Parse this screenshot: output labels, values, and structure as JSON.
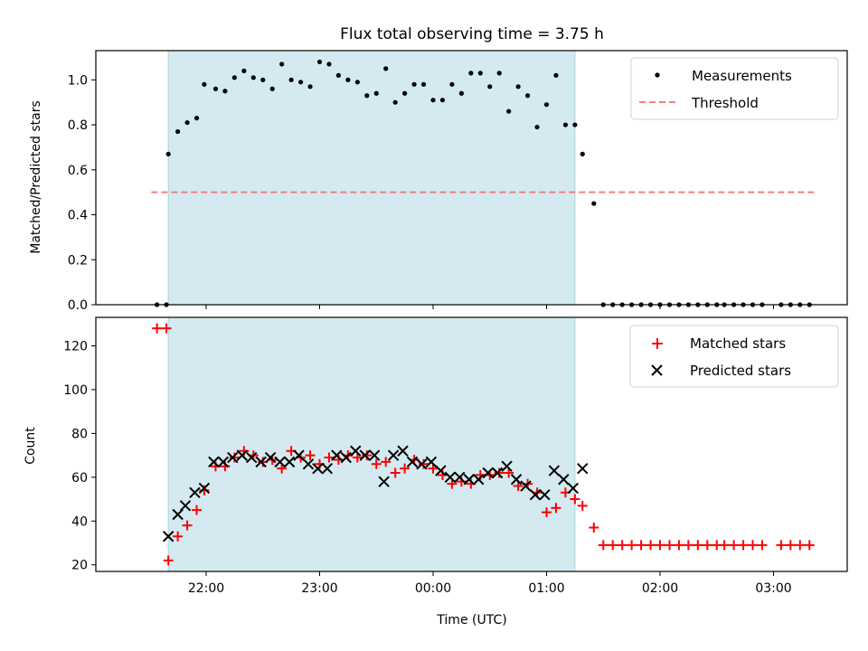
{
  "figure": {
    "title": "Flux total observing time = 3.75 h",
    "xlabel": "Time (UTC)",
    "x_tick_labels": [
      "22:00",
      "23:00",
      "00:00",
      "01:00",
      "02:00",
      "03:00"
    ],
    "shade_color": "#d4eaf0",
    "shade_edge": "#a8d3df"
  },
  "chart_data": [
    {
      "type": "scatter",
      "ylabel": "Matched/Predicted stars",
      "ylim": [
        0,
        1.13
      ],
      "yticks": [
        0.0,
        0.2,
        0.4,
        0.6,
        0.8,
        1.0
      ],
      "y_tick_labels": [
        "0.0",
        "0.2",
        "0.4",
        "0.6",
        "0.8",
        "1.0"
      ],
      "observing_window": {
        "start": "21:40",
        "end": "01:15"
      },
      "threshold": {
        "value": 0.5,
        "from": "21:31",
        "to": "03:22",
        "color": "#f08080"
      },
      "legend_position": "top-right",
      "legend": [
        {
          "label": "Measurements",
          "marker": "dot",
          "color": "#000000"
        },
        {
          "label": "Threshold",
          "marker": "dashed-line",
          "color": "#f08080"
        }
      ],
      "series": [
        {
          "name": "Measurements",
          "color": "#000000",
          "x": [
            "21:34",
            "21:39",
            "21:40",
            "21:45",
            "21:50",
            "21:55",
            "21:59",
            "22:05",
            "22:10",
            "22:15",
            "22:20",
            "22:25",
            "22:30",
            "22:35",
            "22:40",
            "22:45",
            "22:50",
            "22:55",
            "23:00",
            "23:05",
            "23:10",
            "23:15",
            "23:20",
            "23:25",
            "23:30",
            "23:35",
            "23:40",
            "23:45",
            "23:50",
            "23:55",
            "00:00",
            "00:05",
            "00:10",
            "00:15",
            "00:20",
            "00:25",
            "00:30",
            "00:35",
            "00:40",
            "00:45",
            "00:50",
            "00:55",
            "01:00",
            "01:05",
            "01:10",
            "01:15",
            "01:19",
            "01:25",
            "01:30",
            "01:35",
            "01:40",
            "01:45",
            "01:50",
            "01:55",
            "02:00",
            "02:05",
            "02:10",
            "02:15",
            "02:20",
            "02:25",
            "02:30",
            "02:34",
            "02:39",
            "02:44",
            "02:49",
            "02:54",
            "03:04",
            "03:09",
            "03:14",
            "03:19"
          ],
          "y": [
            0.0,
            0.0,
            0.67,
            0.77,
            0.81,
            0.83,
            0.98,
            0.96,
            0.95,
            1.01,
            1.04,
            1.01,
            1.0,
            0.96,
            1.07,
            1.0,
            0.99,
            0.97,
            1.08,
            1.07,
            1.02,
            1.0,
            0.99,
            0.93,
            0.94,
            1.05,
            0.9,
            0.94,
            0.98,
            0.98,
            0.91,
            0.91,
            0.98,
            0.94,
            1.03,
            1.03,
            0.97,
            1.03,
            0.86,
            0.97,
            0.93,
            0.79,
            0.89,
            1.02,
            0.8,
            0.8,
            0.67,
            0.45,
            0.0,
            0.0,
            0.0,
            0.0,
            0.0,
            0.0,
            0.0,
            0.0,
            0.0,
            0.0,
            0.0,
            0.0,
            0.0,
            0.0,
            0.0,
            0.0,
            0.0,
            0.0,
            0.0,
            0.0,
            0.0,
            0.0
          ]
        }
      ]
    },
    {
      "type": "scatter",
      "ylabel": "Count",
      "ylim": [
        17,
        133
      ],
      "yticks": [
        20,
        40,
        60,
        80,
        100,
        120
      ],
      "y_tick_labels": [
        "20",
        "40",
        "60",
        "80",
        "100",
        "120"
      ],
      "observing_window": {
        "start": "21:40",
        "end": "01:15"
      },
      "legend_position": "top-right",
      "legend": [
        {
          "label": "Matched stars",
          "marker": "plus",
          "color": "#ff0000"
        },
        {
          "label": "Predicted stars",
          "marker": "x",
          "color": "#000000"
        }
      ],
      "series": [
        {
          "name": "Matched stars",
          "color": "#ff0000",
          "marker": "plus",
          "x": [
            "21:34",
            "21:39",
            "21:40",
            "21:45",
            "21:50",
            "21:55",
            "21:59",
            "22:05",
            "22:10",
            "22:15",
            "22:20",
            "22:25",
            "22:30",
            "22:35",
            "22:40",
            "22:45",
            "22:50",
            "22:55",
            "23:00",
            "23:05",
            "23:10",
            "23:15",
            "23:20",
            "23:25",
            "23:30",
            "23:35",
            "23:40",
            "23:45",
            "23:50",
            "23:55",
            "00:00",
            "00:05",
            "00:10",
            "00:15",
            "00:20",
            "00:25",
            "00:30",
            "00:35",
            "00:40",
            "00:45",
            "00:50",
            "00:55",
            "01:00",
            "01:05",
            "01:10",
            "01:15",
            "01:19",
            "01:25",
            "01:30",
            "01:35",
            "01:40",
            "01:45",
            "01:50",
            "01:55",
            "02:00",
            "02:05",
            "02:10",
            "02:15",
            "02:20",
            "02:25",
            "02:30",
            "02:34",
            "02:39",
            "02:44",
            "02:49",
            "02:54",
            "03:04",
            "03:09",
            "03:14",
            "03:19"
          ],
          "y": [
            128,
            128,
            22,
            33,
            38,
            45,
            54,
            65,
            65,
            69,
            72,
            70,
            67,
            68,
            64,
            72,
            69,
            70,
            66,
            69,
            68,
            70,
            69,
            70,
            66,
            67,
            62,
            64,
            68,
            66,
            64,
            61,
            57,
            58,
            57,
            61,
            61,
            62,
            62,
            56,
            57,
            53,
            44,
            46,
            53,
            50,
            47,
            37,
            29,
            29,
            29,
            29,
            29,
            29,
            29,
            29,
            29,
            29,
            29,
            29,
            29,
            29,
            29,
            29,
            29,
            29,
            29,
            29,
            29,
            29
          ]
        },
        {
          "name": "Predicted stars",
          "color": "#000000",
          "marker": "x",
          "x": [
            "21:40",
            "21:45",
            "21:49",
            "21:54",
            "21:59",
            "22:04",
            "22:09",
            "22:14",
            "22:19",
            "22:24",
            "22:29",
            "22:34",
            "22:39",
            "22:44",
            "22:49",
            "22:54",
            "22:59",
            "23:04",
            "23:09",
            "23:14",
            "23:19",
            "23:24",
            "23:29",
            "23:34",
            "23:39",
            "23:44",
            "23:49",
            "23:54",
            "23:59",
            "00:04",
            "00:09",
            "00:14",
            "00:19",
            "00:24",
            "00:29",
            "00:34",
            "00:39",
            "00:44",
            "00:49",
            "00:54",
            "00:59",
            "01:04",
            "01:09",
            "01:14",
            "01:19"
          ],
          "y": [
            33,
            43,
            47,
            53,
            55,
            67,
            67,
            69,
            70,
            69,
            67,
            69,
            67,
            67,
            70,
            66,
            64,
            64,
            70,
            69,
            72,
            70,
            70,
            58,
            70,
            72,
            67,
            66,
            67,
            63,
            60,
            60,
            59,
            59,
            62,
            62,
            65,
            59,
            56,
            52,
            52,
            63,
            59,
            55,
            64
          ]
        }
      ]
    }
  ]
}
